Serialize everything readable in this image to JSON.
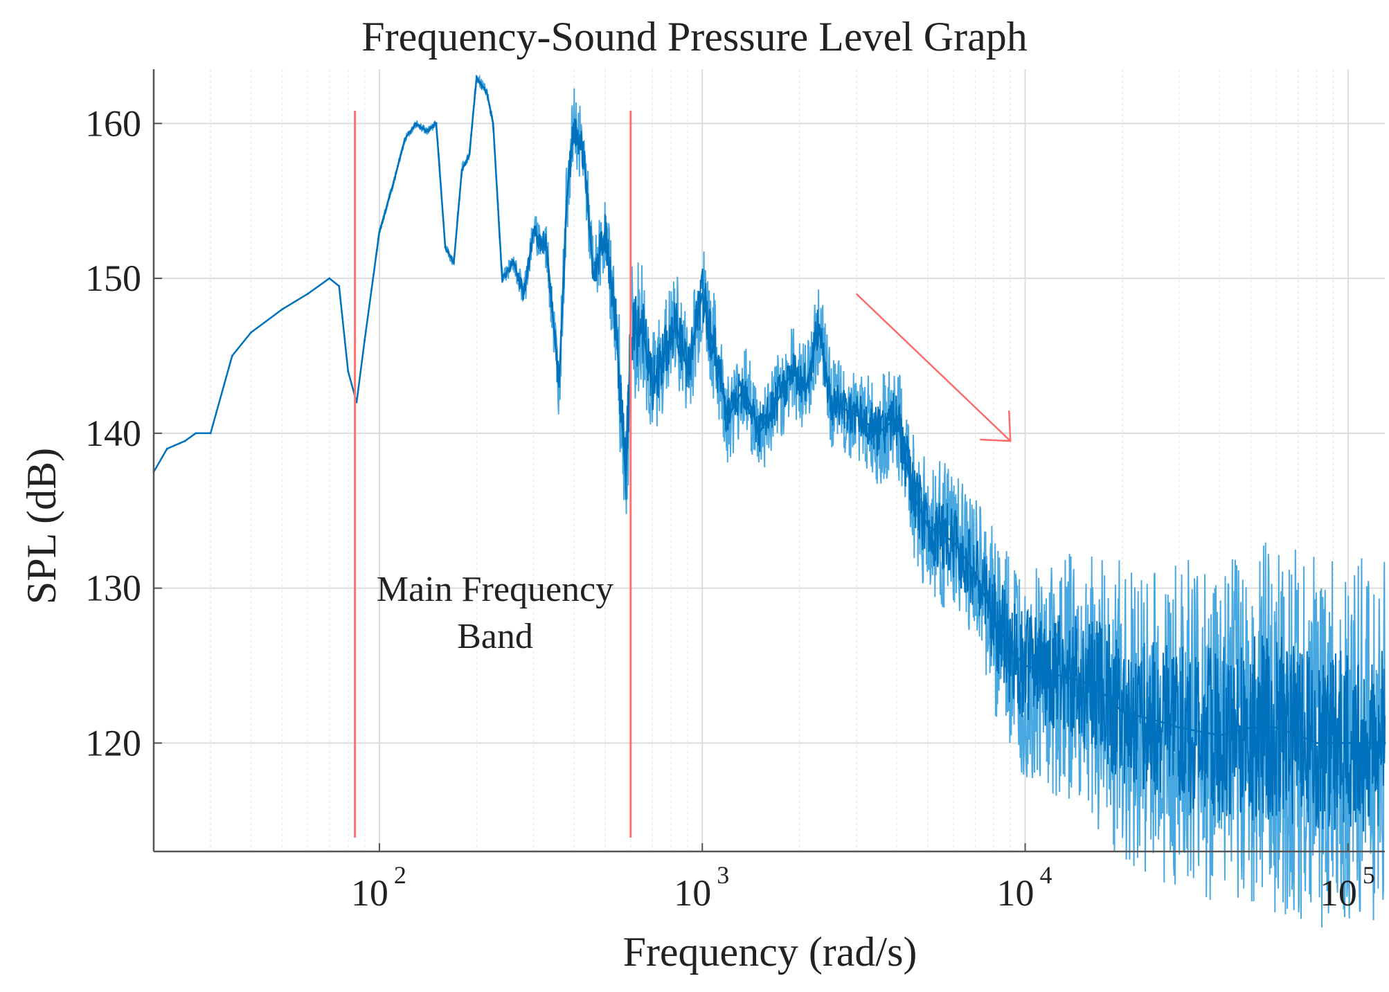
{
  "chart_data": {
    "type": "line",
    "title": "Frequency-Sound Pressure Level Graph",
    "xlabel": "Frequency (rad/s)",
    "ylabel": "SPL (dB)",
    "xscale": "log",
    "xlim": [
      20,
      130000
    ],
    "ylim": [
      113,
      163.5
    ],
    "grid": true,
    "xtick_base": "10",
    "xticks": [
      {
        "exp": "2",
        "value": 100
      },
      {
        "exp": "3",
        "value": 1000
      },
      {
        "exp": "4",
        "value": 10000
      },
      {
        "exp": "5",
        "value": 100000
      }
    ],
    "yticks": [
      {
        "label": "120",
        "value": 120
      },
      {
        "label": "130",
        "value": 130
      },
      {
        "label": "140",
        "value": 140
      },
      {
        "label": "150",
        "value": 150
      },
      {
        "label": "160",
        "value": 160
      }
    ],
    "series": [
      {
        "name": "SPL",
        "color": "#0072bd",
        "light_color": "#4aa8e0",
        "x": [
          20,
          22,
          25,
          27,
          30,
          35,
          40,
          50,
          60,
          70,
          75,
          80,
          85,
          90,
          100,
          110,
          120,
          130,
          140,
          150,
          160,
          170,
          180,
          190,
          200,
          215,
          225,
          240,
          260,
          280,
          300,
          330,
          360,
          380,
          400,
          430,
          460,
          500,
          540,
          580,
          600,
          650,
          700,
          760,
          830,
          900,
          1000,
          1100,
          1200,
          1350,
          1500,
          1700,
          1900,
          2100,
          2300,
          2500,
          2800,
          3100,
          3500,
          4000,
          4500,
          5000,
          6000,
          7000,
          8000,
          9000,
          10000,
          12000,
          15000,
          18000,
          20000,
          25000,
          30000,
          40000,
          50000,
          60000,
          70000,
          80000,
          100000,
          115000,
          130000
        ],
        "values": [
          137.5,
          139,
          139.5,
          140,
          140,
          145,
          146.5,
          148,
          149,
          150,
          149.5,
          144,
          142,
          146,
          153,
          156,
          159,
          160,
          159.5,
          160,
          152,
          151,
          157,
          158,
          163,
          162,
          160,
          150,
          151,
          149,
          153,
          152,
          143,
          155,
          160,
          158,
          150,
          153,
          147,
          137,
          146,
          147,
          143,
          145,
          147,
          144,
          149,
          145,
          141,
          143,
          140,
          142,
          144,
          143,
          147,
          142,
          141.5,
          141,
          140,
          141,
          136,
          134,
          133,
          131,
          128,
          126,
          125,
          124.5,
          124,
          123,
          122,
          121.5,
          121,
          120.5,
          121,
          121,
          120.5,
          120,
          120,
          120,
          120
        ],
        "spread": [
          0,
          0,
          0,
          0,
          0,
          0,
          0,
          0,
          0,
          0,
          0,
          0,
          0,
          0,
          0.2,
          0.2,
          0.2,
          0.2,
          0.2,
          0.3,
          0.3,
          0.3,
          0.3,
          0.3,
          0.3,
          0.3,
          0.3,
          0.5,
          0.5,
          1,
          1,
          1.5,
          2,
          2,
          2,
          2,
          2,
          2,
          3,
          4,
          4,
          4,
          3,
          3,
          3,
          3,
          3,
          3,
          2.5,
          2.5,
          2.5,
          2.5,
          2.5,
          2.5,
          2.5,
          2.5,
          2.5,
          2.5,
          3,
          3,
          3.5,
          4,
          4,
          4,
          5,
          6,
          6,
          6.5,
          7,
          8,
          8,
          8.5,
          9,
          9.5,
          10,
          10,
          10,
          10,
          10,
          10,
          10
        ]
      }
    ],
    "band_markers": [
      84,
      600
    ],
    "band_label": [
      "Main Frequency",
      "Band"
    ],
    "annotation_arrow": {
      "from": [
        3000,
        149
      ],
      "to": [
        9000,
        139.5
      ],
      "color": "#ff6b6b"
    }
  }
}
